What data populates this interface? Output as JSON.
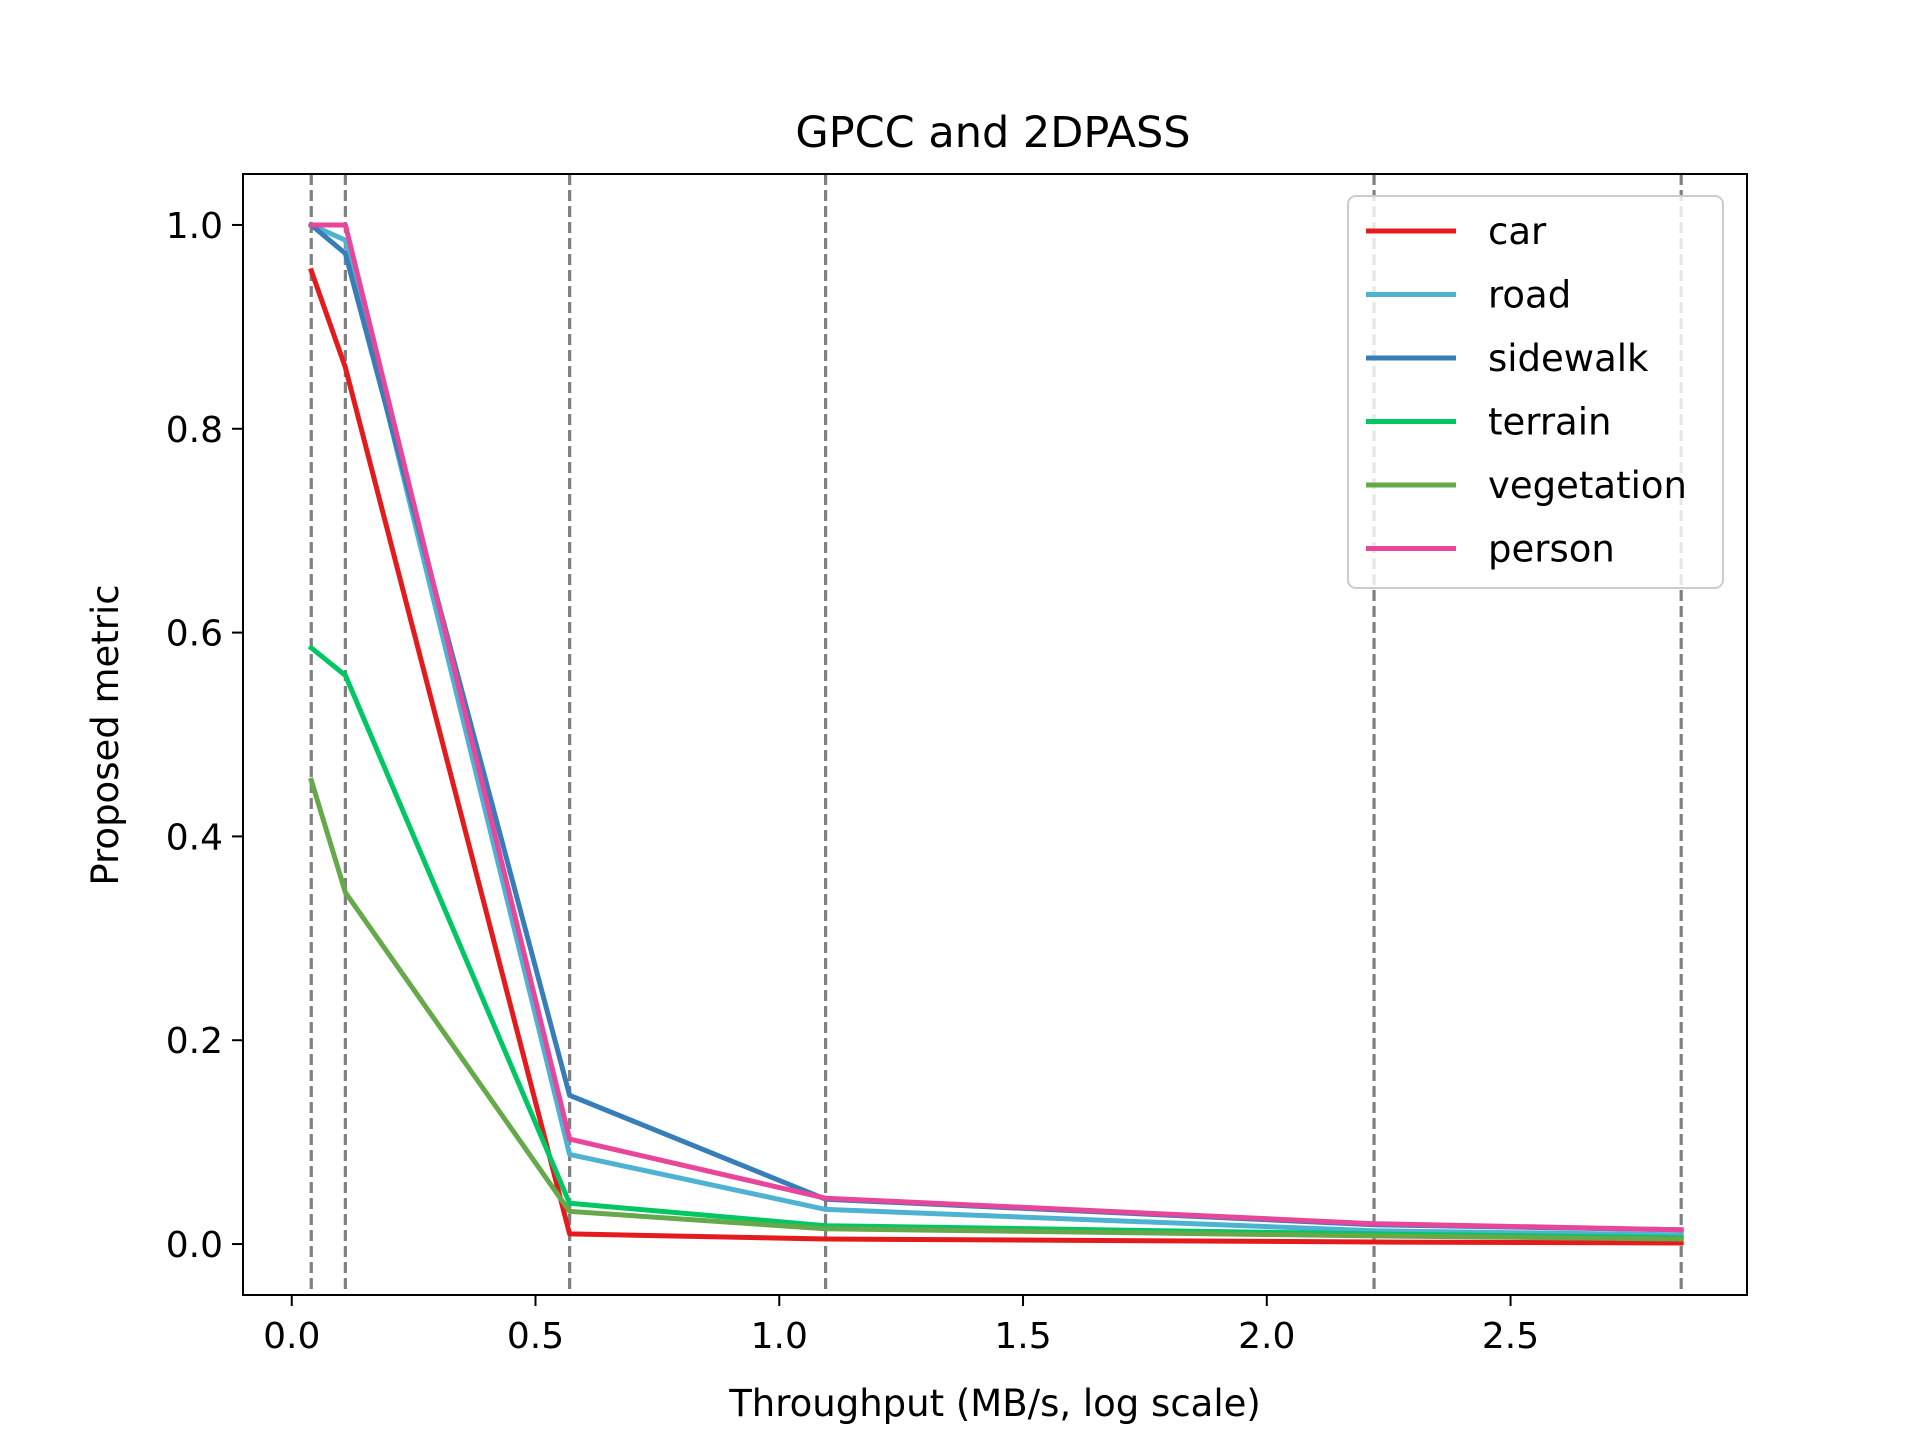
{
  "chart_data": {
    "type": "line",
    "title": "GPCC and 2DPASS",
    "xlabel": "Throughput (MB/s, log scale)",
    "ylabel": "Proposed metric",
    "xlim": [
      -0.1,
      2.985
    ],
    "ylim": [
      -0.05,
      1.05
    ],
    "x_ticks": [
      0.0,
      0.5,
      1.0,
      1.5,
      2.0,
      2.5
    ],
    "x_tick_labels": [
      "0.0",
      "0.5",
      "1.0",
      "1.5",
      "2.0",
      "2.5"
    ],
    "y_ticks": [
      0.0,
      0.2,
      0.4,
      0.6,
      0.8,
      1.0
    ],
    "y_tick_labels": [
      "0.0",
      "0.2",
      "0.4",
      "0.6",
      "0.8",
      "1.0"
    ],
    "grid": false,
    "vlines": [
      0.04,
      0.11,
      0.57,
      1.095,
      2.22,
      2.85
    ],
    "vline_color": "#808080",
    "legend_position": "top-right",
    "x": [
      0.04,
      0.11,
      0.57,
      1.095,
      2.22,
      2.85
    ],
    "series": [
      {
        "name": "car",
        "color": "#e41a1c",
        "values": [
          0.955,
          0.86,
          0.01,
          0.005,
          0.002,
          0.001
        ]
      },
      {
        "name": "road",
        "color": "#4eb3d3",
        "values": [
          1.0,
          0.985,
          0.088,
          0.034,
          0.013,
          0.009
        ]
      },
      {
        "name": "sidewalk",
        "color": "#377eb8",
        "values": [
          1.0,
          0.972,
          0.146,
          0.044,
          0.019,
          0.014
        ]
      },
      {
        "name": "terrain",
        "color": "#00c763",
        "values": [
          0.585,
          0.558,
          0.04,
          0.018,
          0.01,
          0.006
        ]
      },
      {
        "name": "vegetation",
        "color": "#66a94a",
        "values": [
          0.455,
          0.345,
          0.032,
          0.015,
          0.008,
          0.005
        ]
      },
      {
        "name": "person",
        "color": "#e7469b",
        "values": [
          1.0,
          1.0,
          0.103,
          0.045,
          0.02,
          0.014
        ]
      }
    ]
  }
}
